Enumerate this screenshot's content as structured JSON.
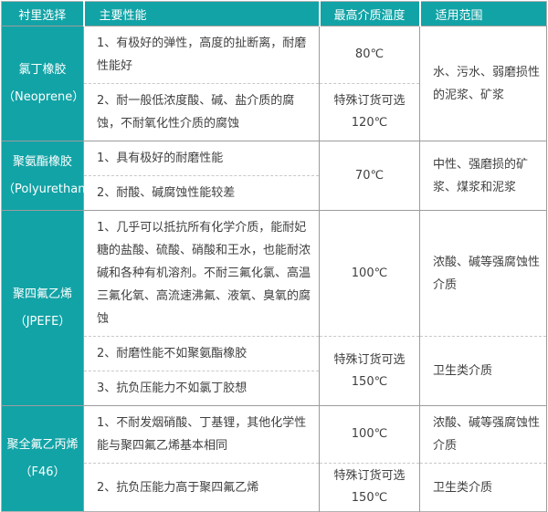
{
  "colors": {
    "accent_teal": "#12a3a6",
    "body_text": "#404040",
    "grid_line": "#9c9c9c",
    "dashed_line": "#c9c9c9"
  },
  "table": {
    "headers": [
      "衬里选择",
      "主要性能",
      "最高介质温度",
      "适用范围"
    ],
    "groups": [
      {
        "material": "氯丁橡胶",
        "material_sub": "（Neoprene）",
        "range": "水、污水、弱磨损性的泥浆、矿浆",
        "rows": [
          {
            "perf": "1、有极好的弹性，高度的扯断离，耐磨性能好",
            "temp": "80℃"
          },
          {
            "perf": "2、耐一般低浓度酸、碱、盐介质的腐蚀，不耐氧化性介质的腐蚀",
            "temp": "特殊订货可选",
            "temp2": "120℃"
          }
        ]
      },
      {
        "material": "聚氨酯橡胶",
        "material_sub": "（Polyurethane）",
        "temp": "70℃",
        "range": "中性、强磨损的矿浆、煤浆和泥浆",
        "rows": [
          {
            "perf": "1、具有极好的耐磨性能"
          },
          {
            "perf": "2、耐酸、碱腐蚀性能较差"
          }
        ]
      },
      {
        "material": "聚四氟乙烯",
        "material_sub": "（JPEFE）",
        "rows": [
          {
            "perf": "1、几乎可以抵抗所有化学介质，能耐妃糖的盐酸、硫酸、硝酸和王水，也能耐浓碱和各种有机溶剂。不耐三氟化氯、高温三氟化氧、高流速沸氟、液氧、臭氧的腐蚀",
            "temp": "100℃",
            "range": "浓酸、碱等强腐蚀性介质"
          },
          {
            "perf": "2、耐磨性能不如聚氨酯橡胶",
            "temp": "特殊订货可选",
            "temp2": "150℃",
            "range": "卫生类介质"
          },
          {
            "perf": "3、抗负压能力不如氯丁胶想"
          }
        ]
      },
      {
        "material": "聚全氟乙丙烯",
        "material_sub": "（F46）",
        "rows": [
          {
            "perf": "1、不耐发烟硝酸、丁基锂，其他化学性能与聚四氟乙烯基本相同",
            "temp": "100℃",
            "range": "浓酸、碱等强腐蚀性介质"
          },
          {
            "perf": "2、抗负压能力高于聚四氟乙烯",
            "temp": "特殊订货可选",
            "temp2": "150℃",
            "range": "卫生类介质"
          }
        ]
      }
    ]
  }
}
